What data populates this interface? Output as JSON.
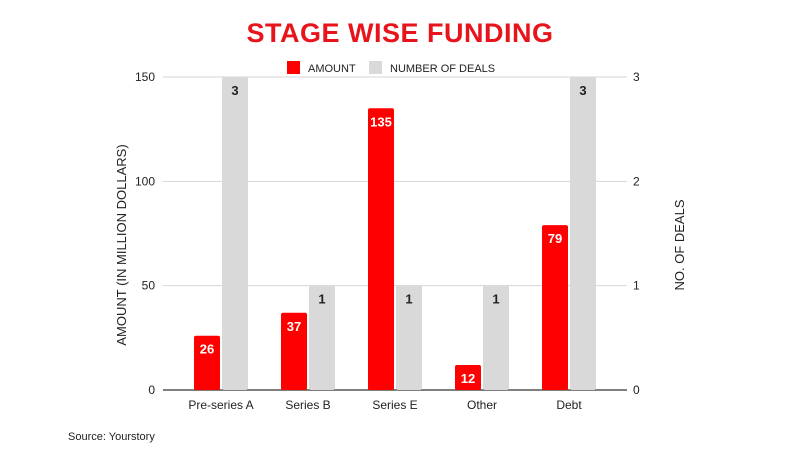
{
  "chart_data": {
    "type": "bar",
    "title": "STAGE WISE FUNDING",
    "categories": [
      "Pre-series A",
      "Series B",
      "Series E",
      "Other",
      "Debt"
    ],
    "series": [
      {
        "name": "AMOUNT",
        "axis": "left",
        "color": "#ff0000",
        "label_color": "#ffffff",
        "values": [
          26,
          37,
          135,
          12,
          79
        ]
      },
      {
        "name": "NUMBER OF DEALS",
        "axis": "right",
        "color": "#d9d9d9",
        "label_color": "#222222",
        "values": [
          3,
          1,
          1,
          1,
          3
        ]
      }
    ],
    "ylabel": "AMOUNT (IN MILLION DOLLARS)",
    "ylabel_right": "NO. OF DEALS",
    "ylim": [
      0,
      150
    ],
    "yticks": [
      0,
      50,
      100,
      150
    ],
    "ylim_right": [
      0,
      3
    ],
    "yticks_right": [
      0,
      1,
      2,
      3
    ],
    "grid": true,
    "legend": "top"
  },
  "source": "Source: Yourstory"
}
